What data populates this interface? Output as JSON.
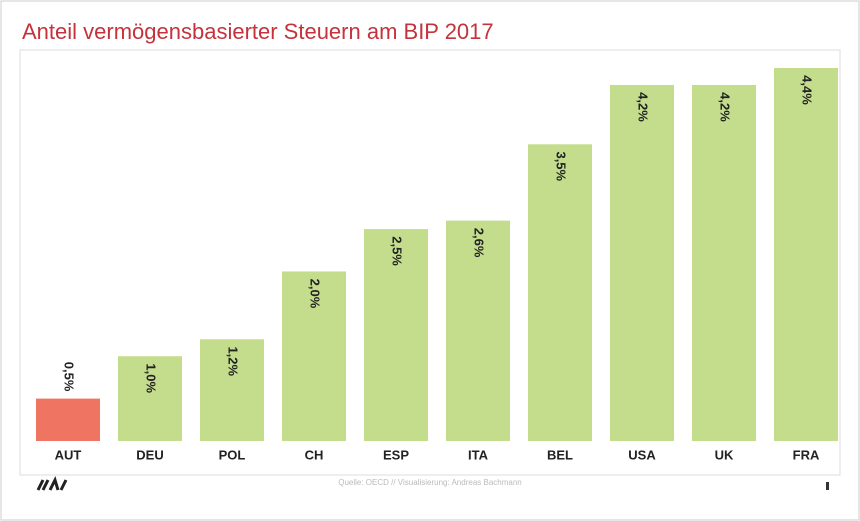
{
  "chart_data": {
    "type": "bar",
    "title": "Anteil vermögensbasierter Steuern am BIP 2017",
    "categories": [
      "AUT",
      "DEU",
      "POL",
      "CH",
      "ESP",
      "ITA",
      "BEL",
      "USA",
      "UK",
      "FRA"
    ],
    "values": [
      0.5,
      1.0,
      1.2,
      2.0,
      2.5,
      2.6,
      3.5,
      4.2,
      4.2,
      4.4
    ],
    "value_labels": [
      "0,5%",
      "1,0%",
      "1,2%",
      "2,0%",
      "2,5%",
      "2,6%",
      "3,5%",
      "4,2%",
      "4,2%",
      "4,4%"
    ],
    "colors": [
      "#f07462",
      "#c4dd8d",
      "#c4dd8d",
      "#c4dd8d",
      "#c4dd8d",
      "#c4dd8d",
      "#c4dd8d",
      "#c4dd8d",
      "#c4dd8d",
      "#c4dd8d"
    ],
    "source": "Quelle: OECD // Visualisierung: Andreas Bachmann"
  }
}
